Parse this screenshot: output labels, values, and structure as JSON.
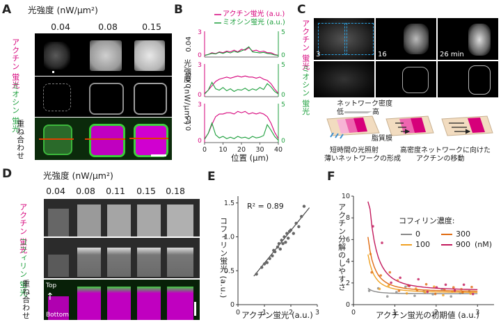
{
  "panel_a": {
    "letter": "A",
    "header": "光強度 (nW/μm²)",
    "concentrations": [
      "0.04",
      "0.08",
      "0.15"
    ],
    "row_labels": [
      "アクチン 蛍光",
      "ミオシン 蛍光",
      "重ね合わせ"
    ]
  },
  "panel_b": {
    "letter": "B",
    "legend_actin": "アクチン蛍光 (a.u.)",
    "legend_myosin": "ミオシン蛍光 (a.u.)",
    "ylabel": "光強度 (nW/μm²)",
    "xlabel": "位置 (μm)",
    "row_intensities": [
      "0.04",
      "0.08",
      "0.15"
    ],
    "left_ticks": [
      "3",
      "0"
    ],
    "right_ticks": [
      "5",
      "0"
    ],
    "x_ticks": [
      "0",
      "10",
      "20",
      "30",
      "40"
    ]
  },
  "panel_c": {
    "letter": "C",
    "row_labels": [
      "アクチン 蛍光",
      "ミオシン 蛍光"
    ],
    "times": [
      "3",
      "16",
      "26 min"
    ],
    "density_label": "ネットワーク密度",
    "low": "低",
    "high": "高",
    "membrane": "脂質膜",
    "caption_left_1": "短時間の光照射",
    "caption_left_2": "薄いネットワークの形成",
    "caption_right_1": "高密度ネットワークに向けた",
    "caption_right_2": "アクチンの移動"
  },
  "panel_d": {
    "letter": "D",
    "header": "光強度 (nW/μm²)",
    "concentrations": [
      "0.04",
      "0.08",
      "0.11",
      "0.15",
      "0.18"
    ],
    "row_labels": [
      "アクチン 蛍光",
      "コフィリン 蛍光",
      "重ね合わせ"
    ],
    "top": "Top",
    "bottom": "Bottom"
  },
  "panel_e": {
    "letter": "E",
    "r2": "R² = 0.89",
    "xlabel": "アクチン蛍光 (a.u.)",
    "ylabel": "コフィリン蛍光 (a.u.)",
    "x_ticks": [
      "0",
      "1",
      "2",
      "3"
    ],
    "y_ticks": [
      "0",
      "0.5",
      "1.0",
      "1.5"
    ]
  },
  "panel_f": {
    "letter": "F",
    "xlabel": "アクチン蛍光の初期値 (a.u.)",
    "ylabel": "アクチン分解のしやすさ",
    "legend_title": "コフィリン濃度:",
    "legend_unit": "(nM)",
    "x_ticks": [
      "0",
      "1",
      "2",
      "3"
    ],
    "y_ticks": [
      "0",
      "2",
      "4",
      "6",
      "8",
      "10"
    ]
  },
  "chart_data": [
    {
      "id": "B",
      "type": "line",
      "title": "",
      "xlabel": "位置 (μm)",
      "ylabel": "光強度 (nW/μm²)",
      "xlim": [
        0,
        40
      ],
      "subplots": [
        {
          "intensity": "0.04",
          "ylim_left": [
            0,
            3
          ],
          "ylim_right": [
            0,
            5
          ],
          "series": [
            {
              "name": "アクチン蛍光 (a.u.)",
              "color": "#d6007a",
              "x": [
                0,
                2,
                4,
                6,
                8,
                10,
                12,
                14,
                16,
                18,
                20,
                22,
                24,
                26,
                28,
                30,
                32,
                34,
                36,
                38,
                40
              ],
              "values": [
                0.2,
                0.3,
                0.5,
                0.4,
                0.6,
                0.5,
                0.7,
                0.6,
                0.8,
                0.6,
                0.9,
                0.8,
                1.1,
                0.7,
                0.8,
                0.6,
                0.7,
                0.5,
                0.5,
                0.3,
                0.2
              ]
            },
            {
              "name": "ミオシン蛍光 (a.u.)",
              "color": "#1a9e3a",
              "x": [
                0,
                2,
                4,
                6,
                8,
                10,
                12,
                14,
                16,
                18,
                20,
                22,
                24,
                26,
                28,
                30,
                32,
                34,
                36,
                38,
                40
              ],
              "values": [
                0.3,
                0.5,
                0.7,
                0.6,
                0.9,
                0.7,
                1.0,
                0.8,
                1.1,
                0.9,
                1.2,
                1.5,
                2.0,
                1.0,
                0.9,
                0.8,
                0.9,
                0.7,
                0.6,
                0.4,
                0.3
              ]
            }
          ]
        },
        {
          "intensity": "0.08",
          "ylim_left": [
            0,
            3
          ],
          "ylim_right": [
            0,
            5
          ],
          "series": [
            {
              "name": "アクチン蛍光 (a.u.)",
              "color": "#d6007a",
              "x": [
                0,
                2,
                4,
                6,
                8,
                10,
                12,
                14,
                16,
                18,
                20,
                22,
                24,
                26,
                28,
                30,
                32,
                34,
                36,
                38,
                40
              ],
              "values": [
                0.3,
                0.6,
                1.0,
                1.4,
                1.6,
                1.7,
                1.8,
                1.7,
                1.8,
                1.9,
                1.8,
                1.9,
                1.8,
                1.8,
                1.7,
                1.8,
                1.6,
                1.5,
                1.2,
                0.7,
                0.3
              ]
            },
            {
              "name": "ミオシン蛍光 (a.u.)",
              "color": "#1a9e3a",
              "x": [
                0,
                2,
                4,
                6,
                8,
                10,
                12,
                14,
                16,
                18,
                20,
                22,
                24,
                26,
                28,
                30,
                32,
                34,
                36,
                38,
                40
              ],
              "values": [
                0.4,
                1.0,
                2.2,
                1.2,
                1.0,
                1.4,
                0.9,
                1.2,
                0.8,
                1.1,
                1.0,
                1.3,
                0.9,
                1.2,
                1.0,
                1.4,
                1.1,
                2.0,
                1.5,
                0.8,
                0.4
              ]
            }
          ]
        },
        {
          "intensity": "0.15",
          "ylim_left": [
            0,
            3
          ],
          "ylim_right": [
            0,
            5
          ],
          "series": [
            {
              "name": "アクチン蛍光 (a.u.)",
              "color": "#d6007a",
              "x": [
                0,
                2,
                4,
                6,
                8,
                10,
                12,
                14,
                16,
                18,
                20,
                22,
                24,
                26,
                28,
                30,
                32,
                34,
                36,
                38,
                40
              ],
              "values": [
                0.3,
                0.7,
                1.4,
                2.0,
                2.2,
                2.2,
                2.3,
                2.3,
                2.2,
                2.4,
                2.3,
                2.4,
                2.2,
                2.3,
                2.2,
                2.3,
                2.2,
                2.0,
                1.5,
                0.8,
                0.3
              ]
            },
            {
              "name": "ミオシン蛍光 (a.u.)",
              "color": "#1a9e3a",
              "x": [
                0,
                2,
                4,
                6,
                8,
                10,
                12,
                14,
                16,
                18,
                20,
                22,
                24,
                26,
                28,
                30,
                32,
                34,
                36,
                38,
                40
              ],
              "values": [
                0.4,
                1.2,
                2.5,
                1.0,
                0.6,
                0.8,
                0.5,
                0.7,
                0.5,
                0.8,
                0.6,
                0.7,
                0.5,
                0.8,
                0.6,
                0.7,
                0.9,
                2.3,
                1.6,
                0.8,
                0.3
              ]
            }
          ]
        }
      ]
    },
    {
      "id": "E",
      "type": "scatter",
      "title": "",
      "xlabel": "アクチン蛍光 (a.u.)",
      "ylabel": "コフィリン蛍光 (a.u.)",
      "xlim": [
        0,
        3
      ],
      "ylim": [
        0,
        1.6
      ],
      "annotation": "R² = 0.89",
      "fit_line": {
        "x": [
          0.6,
          2.7
        ],
        "y": [
          0.42,
          1.43
        ]
      },
      "points": {
        "x": [
          0.7,
          0.9,
          1.0,
          1.1,
          1.2,
          1.3,
          1.35,
          1.4,
          1.5,
          1.55,
          1.6,
          1.65,
          1.7,
          1.75,
          1.8,
          1.85,
          1.9,
          1.95,
          2.0,
          2.1,
          2.2,
          2.3,
          2.4,
          2.5
        ],
        "y": [
          0.45,
          0.55,
          0.6,
          0.62,
          0.68,
          0.72,
          0.8,
          0.78,
          0.85,
          0.9,
          0.82,
          0.95,
          0.9,
          1.0,
          0.92,
          1.05,
          0.98,
          1.08,
          1.1,
          1.05,
          1.2,
          1.15,
          1.3,
          1.45
        ]
      }
    },
    {
      "id": "F",
      "type": "scatter",
      "title": "",
      "xlabel": "アクチン蛍光の初期値 (a.u.)",
      "ylabel": "アクチン分解のしやすさ",
      "xlim": [
        0,
        3.4
      ],
      "ylim": [
        0,
        10
      ],
      "legend_title": "コフィリン濃度:",
      "series": [
        {
          "name": "0",
          "color": "#888888",
          "a": 0.05,
          "b": 1.0
        },
        {
          "name": "100",
          "color": "#f0a020",
          "a": 0.35,
          "b": 1.1
        },
        {
          "name": "300",
          "color": "#e06a10",
          "a": 0.5,
          "b": 1.2
        },
        {
          "name": "900",
          "color": "#c2185b",
          "a": 1.0,
          "b": 1.3
        }
      ]
    }
  ]
}
